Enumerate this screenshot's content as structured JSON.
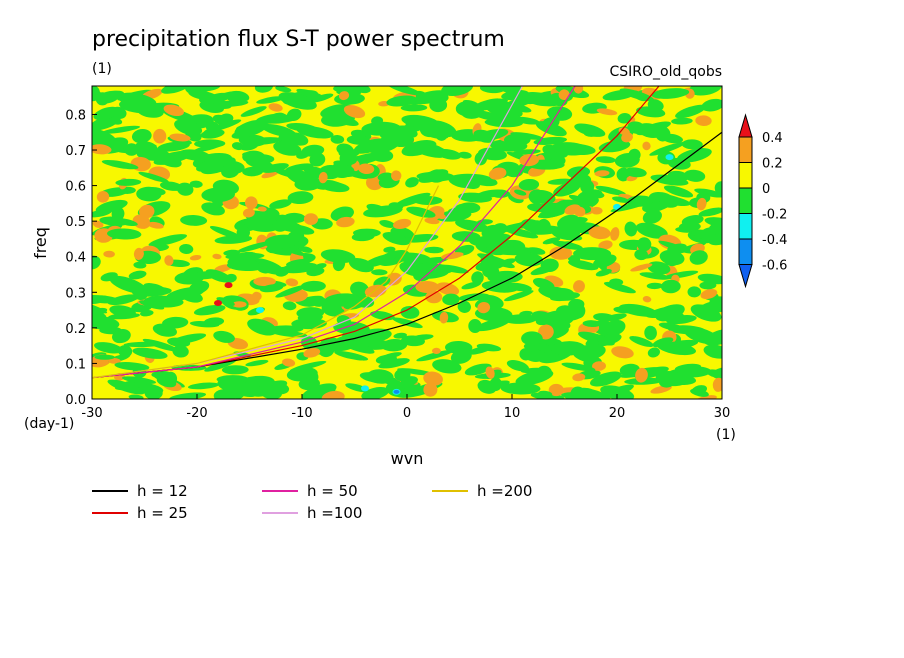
{
  "chart_data": {
    "type": "heatmap",
    "title": "precipitation flux S-T power spectrum",
    "subtitle": "(1)",
    "model_label": "CSIRO_old_qobs",
    "xlabel": "wvn",
    "ylabel": "freq",
    "x_unit": "(1)",
    "y_unit": "(day-1)",
    "xlim": [
      -30,
      30
    ],
    "ylim": [
      0,
      0.88
    ],
    "x_ticks": [
      "-30",
      "-20",
      "-10",
      "0",
      "10",
      "20",
      "30"
    ],
    "y_ticks": [
      "0.0",
      "0.1",
      "0.2",
      "0.3",
      "0.4",
      "0.5",
      "0.6",
      "0.7",
      "0.8"
    ],
    "colorbar": {
      "levels": [
        "0.4",
        "0.2",
        "0",
        "-0.2",
        "-0.4",
        "-0.6"
      ],
      "colors": [
        "#e8101a",
        "#f5a020",
        "#f8f800",
        "#20e030",
        "#10f0f0",
        "#0e8ef0",
        "#1060f0"
      ]
    },
    "field_note": "noisy anomaly field mostly between -0.2 and 0.2",
    "series": [
      {
        "name": "h = 12",
        "color": "#000000",
        "x": [
          -30,
          -20,
          -10,
          -5,
          0,
          5,
          10,
          15,
          20,
          25,
          30
        ],
        "y": [
          0.06,
          0.09,
          0.14,
          0.17,
          0.21,
          0.27,
          0.34,
          0.43,
          0.53,
          0.64,
          0.75
        ]
      },
      {
        "name": "h = 25",
        "color": "#e00000",
        "x": [
          -30,
          -20,
          -10,
          -5,
          0,
          5,
          10,
          15,
          20,
          24
        ],
        "y": [
          0.06,
          0.09,
          0.15,
          0.19,
          0.25,
          0.34,
          0.46,
          0.6,
          0.74,
          0.88
        ]
      },
      {
        "name": "h = 50",
        "color": "#e020a0",
        "x": [
          -30,
          -20,
          -10,
          -5,
          0,
          5,
          10,
          16
        ],
        "y": [
          0.06,
          0.09,
          0.16,
          0.21,
          0.3,
          0.43,
          0.6,
          0.88
        ]
      },
      {
        "name": "h =100",
        "color": "#e0a0e0",
        "x": [
          -30,
          -20,
          -10,
          -5,
          0,
          5,
          11
        ],
        "y": [
          0.06,
          0.1,
          0.17,
          0.23,
          0.36,
          0.56,
          0.88
        ]
      },
      {
        "name": "h =200",
        "color": "#e0c000",
        "x": [
          -30,
          -20,
          -10,
          -5,
          -2,
          0,
          3
        ],
        "y": [
          0.06,
          0.1,
          0.18,
          0.26,
          0.33,
          0.42,
          0.6
        ]
      }
    ]
  }
}
